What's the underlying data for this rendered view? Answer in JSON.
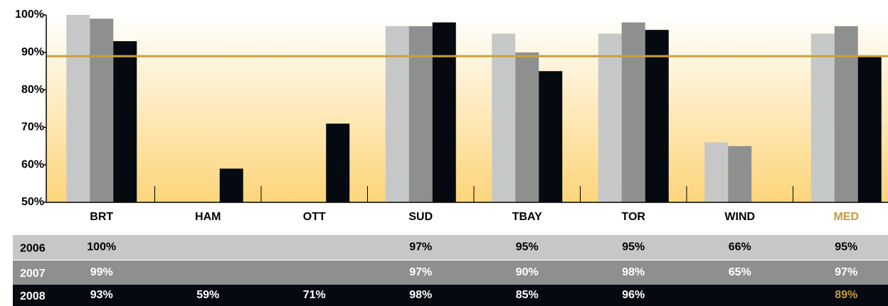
{
  "chart_data": {
    "type": "bar",
    "categories": [
      "BRT",
      "HAM",
      "OTT",
      "SUD",
      "TBAY",
      "TOR",
      "WIND",
      "MED"
    ],
    "series": [
      {
        "name": "2006",
        "color": "#c6c8c8",
        "text_color": "#000000",
        "values": [
          100,
          null,
          null,
          97,
          95,
          95,
          66,
          95
        ],
        "value_labels": [
          "100%",
          null,
          null,
          "97%",
          "95%",
          "95%",
          "66%",
          "95%"
        ]
      },
      {
        "name": "2007",
        "color": "#8e908f",
        "text_color": "#ffffff",
        "values": [
          99,
          null,
          null,
          97,
          90,
          98,
          65,
          97
        ],
        "value_labels": [
          "99%",
          null,
          null,
          "97%",
          "90%",
          "98%",
          "65%",
          "97%"
        ]
      },
      {
        "name": "2008",
        "color": "#050a10",
        "text_color": "#ffffff",
        "values": [
          93,
          59,
          71,
          98,
          85,
          96,
          null,
          89
        ],
        "value_labels": [
          "93%",
          "59%",
          "71%",
          "98%",
          "85%",
          "96%",
          null,
          "89%"
        ]
      }
    ],
    "ylim": [
      50,
      100
    ],
    "yticks": [
      {
        "value": 50,
        "label": "50%"
      },
      {
        "value": 60,
        "label": "60%"
      },
      {
        "value": 70,
        "label": "70%"
      },
      {
        "value": 80,
        "label": "80%"
      },
      {
        "value": 90,
        "label": "90%"
      },
      {
        "value": 100,
        "label": "100%"
      }
    ],
    "reference_line": {
      "value": 89,
      "color": "#c9a03c"
    },
    "highlight_index": 7,
    "highlight_color": "#c49a3c"
  }
}
